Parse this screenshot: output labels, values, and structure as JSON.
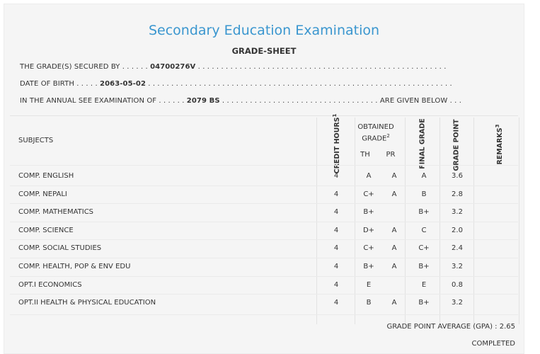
{
  "header": {
    "title": "Secondary Education Examination",
    "subtitle": "GRADE-SHEET"
  },
  "info": {
    "secured_by_label": "THE GRADE(S) SECURED BY",
    "secured_by_value": "04700276V",
    "dob_label": "DATE OF BIRTH",
    "dob_value": "2063-05-02",
    "exam_label": "IN THE ANNUAL SEE EXAMINATION OF",
    "exam_value": "2079 BS",
    "exam_suffix": "ARE GIVEN BELOW"
  },
  "table": {
    "headers": {
      "subjects": "SUBJECTS",
      "credit_hours": "CREDIT HOURS",
      "credit_sup": "1",
      "obtained_grade": "OBTAINED GRADE",
      "obtained_sup": "2",
      "th": "TH",
      "pr": "PR",
      "final_grade": "FINAL GRADE",
      "grade_point": "GRADE POINT",
      "remarks": "REMARKS",
      "remarks_sup": "3"
    },
    "rows": [
      {
        "subject": "COMP. ENGLISH",
        "credit": "4",
        "th": "A",
        "pr": "A",
        "final": "A",
        "gp": "3.6"
      },
      {
        "subject": "COMP. NEPALI",
        "credit": "4",
        "th": "C+",
        "pr": "A",
        "final": "B",
        "gp": "2.8"
      },
      {
        "subject": "COMP. MATHEMATICS",
        "credit": "4",
        "th": "B+",
        "pr": "",
        "final": "B+",
        "gp": "3.2"
      },
      {
        "subject": "COMP. SCIENCE",
        "credit": "4",
        "th": "D+",
        "pr": "A",
        "final": "C",
        "gp": "2.0"
      },
      {
        "subject": "COMP. SOCIAL STUDIES",
        "credit": "4",
        "th": "C+",
        "pr": "A",
        "final": "C+",
        "gp": "2.4"
      },
      {
        "subject": "COMP. HEALTH, POP & ENV EDU",
        "credit": "4",
        "th": "B+",
        "pr": "A",
        "final": "B+",
        "gp": "3.2"
      },
      {
        "subject": "OPT.I ECONOMICS",
        "credit": "4",
        "th": "E",
        "pr": "",
        "final": "E",
        "gp": "0.8"
      },
      {
        "subject": "OPT.II HEALTH & PHYSICAL EDUCATION",
        "credit": "4",
        "th": "B",
        "pr": "A",
        "final": "B+",
        "gp": "3.2"
      }
    ]
  },
  "footer": {
    "gpa_label": "GRADE POINT AVERAGE (GPA) :",
    "gpa_value": "2.65",
    "status": "COMPLETED"
  }
}
